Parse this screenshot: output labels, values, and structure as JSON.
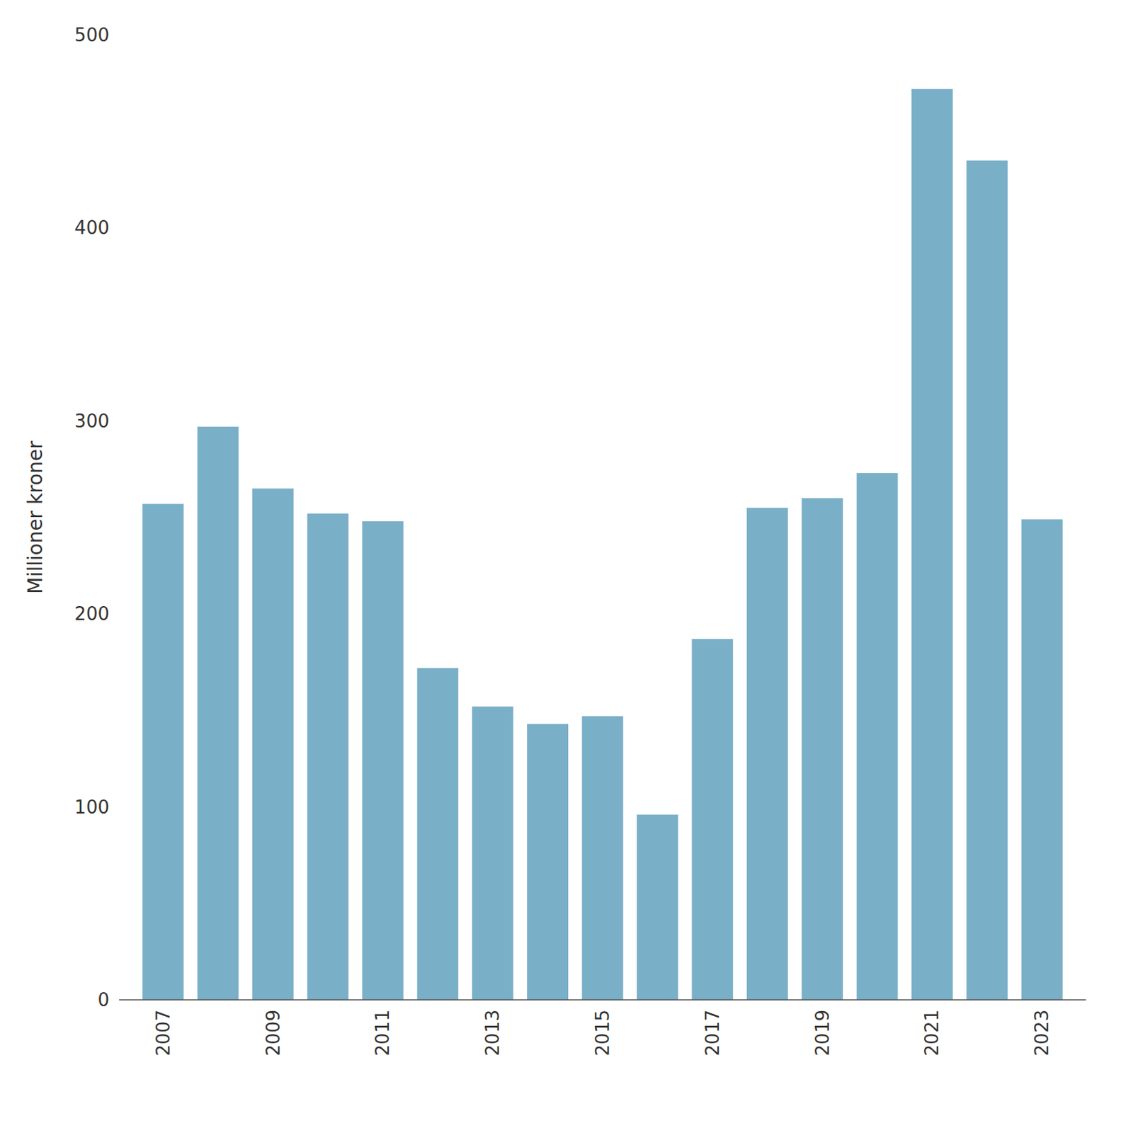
{
  "chart_data": {
    "type": "bar",
    "ylabel": "Millioner kroner",
    "x": [
      2007,
      2008,
      2009,
      2010,
      2011,
      2012,
      2013,
      2014,
      2015,
      2016,
      2017,
      2018,
      2019,
      2020,
      2021,
      2022,
      2023
    ],
    "values": [
      257,
      297,
      265,
      252,
      248,
      172,
      152,
      143,
      147,
      96,
      187,
      255,
      260,
      273,
      472,
      435,
      249
    ],
    "color": "#7aafc8",
    "xlim": [
      2006.2,
      2023.8
    ],
    "xticks": [
      2007,
      2009,
      2011,
      2013,
      2015,
      2017,
      2019,
      2021,
      2023
    ],
    "ylim": [
      0,
      500
    ],
    "yticks": [
      0,
      100,
      200,
      300,
      400,
      500
    ],
    "grid": false
  }
}
